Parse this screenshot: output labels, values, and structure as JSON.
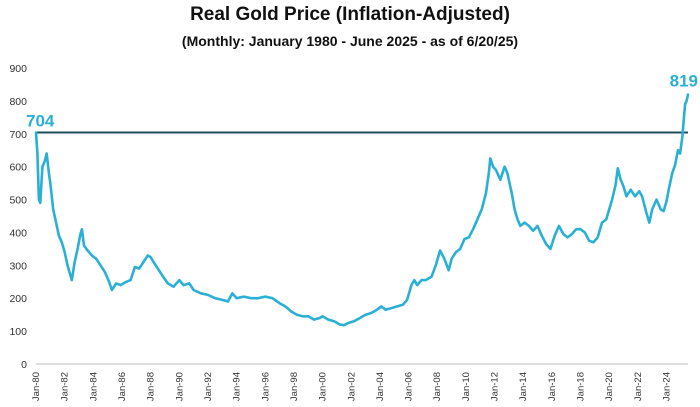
{
  "chart_data": {
    "type": "line",
    "title": "Real Gold Price (Inflation-Adjusted)",
    "subtitle": "(Monthly: January 1980 - June 2025 - as of 6/20/25)",
    "xlabel": "",
    "ylabel": "",
    "ylim": [
      0,
      900
    ],
    "yticks": [
      0,
      100,
      200,
      300,
      400,
      500,
      600,
      700,
      800,
      900
    ],
    "xlim": [
      1980.0,
      2025.5
    ],
    "xticks": [
      {
        "x": 1980,
        "label": "Jan-80"
      },
      {
        "x": 1982,
        "label": "Jan-82"
      },
      {
        "x": 1984,
        "label": "Jan-84"
      },
      {
        "x": 1986,
        "label": "Jan-86"
      },
      {
        "x": 1988,
        "label": "Jan-88"
      },
      {
        "x": 1990,
        "label": "Jan-90"
      },
      {
        "x": 1992,
        "label": "Jan-92"
      },
      {
        "x": 1994,
        "label": "Jan-94"
      },
      {
        "x": 1996,
        "label": "Jan-96"
      },
      {
        "x": 1998,
        "label": "Jan-98"
      },
      {
        "x": 2000,
        "label": "Jan-00"
      },
      {
        "x": 2002,
        "label": "Jan-02"
      },
      {
        "x": 2004,
        "label": "Jan-04"
      },
      {
        "x": 2006,
        "label": "Jan-06"
      },
      {
        "x": 2008,
        "label": "Jan-08"
      },
      {
        "x": 2010,
        "label": "Jan-10"
      },
      {
        "x": 2012,
        "label": "Jan-12"
      },
      {
        "x": 2014,
        "label": "Jan-14"
      },
      {
        "x": 2016,
        "label": "Jan-16"
      },
      {
        "x": 2018,
        "label": "Jan-18"
      },
      {
        "x": 2020,
        "label": "Jan-20"
      },
      {
        "x": 2022,
        "label": "Jan-22"
      },
      {
        "x": 2024,
        "label": "Jan-24"
      }
    ],
    "series": [
      {
        "color": "#2ab0d4",
        "points": [
          [
            1980.0,
            704
          ],
          [
            1980.1,
            640
          ],
          [
            1980.2,
            500
          ],
          [
            1980.3,
            490
          ],
          [
            1980.45,
            600
          ],
          [
            1980.6,
            615
          ],
          [
            1980.75,
            640
          ],
          [
            1980.9,
            580
          ],
          [
            1981.0,
            550
          ],
          [
            1981.2,
            470
          ],
          [
            1981.4,
            430
          ],
          [
            1981.6,
            390
          ],
          [
            1981.8,
            370
          ],
          [
            1982.0,
            340
          ],
          [
            1982.2,
            300
          ],
          [
            1982.4,
            270
          ],
          [
            1982.5,
            255
          ],
          [
            1982.7,
            310
          ],
          [
            1982.9,
            350
          ],
          [
            1983.1,
            395
          ],
          [
            1983.2,
            410
          ],
          [
            1983.35,
            360
          ],
          [
            1983.6,
            345
          ],
          [
            1983.9,
            330
          ],
          [
            1984.2,
            320
          ],
          [
            1984.5,
            300
          ],
          [
            1984.8,
            280
          ],
          [
            1985.1,
            250
          ],
          [
            1985.3,
            225
          ],
          [
            1985.6,
            245
          ],
          [
            1985.9,
            240
          ],
          [
            1986.3,
            250
          ],
          [
            1986.6,
            255
          ],
          [
            1986.9,
            295
          ],
          [
            1987.2,
            290
          ],
          [
            1987.5,
            310
          ],
          [
            1987.8,
            330
          ],
          [
            1988.0,
            325
          ],
          [
            1988.2,
            310
          ],
          [
            1988.5,
            290
          ],
          [
            1988.8,
            270
          ],
          [
            1989.2,
            245
          ],
          [
            1989.6,
            235
          ],
          [
            1990.0,
            255
          ],
          [
            1990.3,
            240
          ],
          [
            1990.7,
            245
          ],
          [
            1991.0,
            225
          ],
          [
            1991.5,
            215
          ],
          [
            1992.0,
            210
          ],
          [
            1992.5,
            200
          ],
          [
            1993.0,
            195
          ],
          [
            1993.4,
            190
          ],
          [
            1993.7,
            215
          ],
          [
            1994.0,
            200
          ],
          [
            1994.5,
            205
          ],
          [
            1995.0,
            200
          ],
          [
            1995.5,
            200
          ],
          [
            1996.0,
            205
          ],
          [
            1996.5,
            200
          ],
          [
            1997.0,
            185
          ],
          [
            1997.4,
            175
          ],
          [
            1997.8,
            160
          ],
          [
            1998.2,
            150
          ],
          [
            1998.6,
            145
          ],
          [
            1999.0,
            145
          ],
          [
            1999.4,
            135
          ],
          [
            1999.8,
            140
          ],
          [
            2000.0,
            145
          ],
          [
            2000.4,
            135
          ],
          [
            2000.8,
            130
          ],
          [
            2001.2,
            120
          ],
          [
            2001.5,
            118
          ],
          [
            2001.8,
            125
          ],
          [
            2002.2,
            130
          ],
          [
            2002.6,
            140
          ],
          [
            2003.0,
            150
          ],
          [
            2003.4,
            155
          ],
          [
            2003.8,
            165
          ],
          [
            2004.1,
            175
          ],
          [
            2004.4,
            165
          ],
          [
            2004.8,
            170
          ],
          [
            2005.2,
            175
          ],
          [
            2005.6,
            180
          ],
          [
            2005.9,
            195
          ],
          [
            2006.2,
            240
          ],
          [
            2006.4,
            255
          ],
          [
            2006.6,
            240
          ],
          [
            2006.9,
            255
          ],
          [
            2007.2,
            255
          ],
          [
            2007.6,
            265
          ],
          [
            2007.9,
            300
          ],
          [
            2008.2,
            345
          ],
          [
            2008.5,
            320
          ],
          [
            2008.8,
            285
          ],
          [
            2009.0,
            320
          ],
          [
            2009.3,
            340
          ],
          [
            2009.6,
            350
          ],
          [
            2009.9,
            380
          ],
          [
            2010.2,
            385
          ],
          [
            2010.5,
            410
          ],
          [
            2010.8,
            440
          ],
          [
            2011.1,
            470
          ],
          [
            2011.4,
            520
          ],
          [
            2011.6,
            580
          ],
          [
            2011.7,
            625
          ],
          [
            2011.9,
            600
          ],
          [
            2012.1,
            590
          ],
          [
            2012.4,
            560
          ],
          [
            2012.7,
            600
          ],
          [
            2012.9,
            580
          ],
          [
            2013.2,
            520
          ],
          [
            2013.4,
            470
          ],
          [
            2013.6,
            440
          ],
          [
            2013.8,
            420
          ],
          [
            2014.1,
            430
          ],
          [
            2014.4,
            420
          ],
          [
            2014.7,
            405
          ],
          [
            2015.0,
            420
          ],
          [
            2015.3,
            390
          ],
          [
            2015.6,
            365
          ],
          [
            2015.9,
            350
          ],
          [
            2016.2,
            390
          ],
          [
            2016.5,
            420
          ],
          [
            2016.8,
            395
          ],
          [
            2017.1,
            385
          ],
          [
            2017.4,
            395
          ],
          [
            2017.7,
            410
          ],
          [
            2018.0,
            410
          ],
          [
            2018.3,
            400
          ],
          [
            2018.6,
            375
          ],
          [
            2018.9,
            370
          ],
          [
            2019.2,
            385
          ],
          [
            2019.5,
            430
          ],
          [
            2019.8,
            440
          ],
          [
            2020.0,
            470
          ],
          [
            2020.2,
            500
          ],
          [
            2020.45,
            545
          ],
          [
            2020.6,
            595
          ],
          [
            2020.8,
            560
          ],
          [
            2021.0,
            540
          ],
          [
            2021.2,
            510
          ],
          [
            2021.5,
            530
          ],
          [
            2021.8,
            510
          ],
          [
            2022.1,
            525
          ],
          [
            2022.3,
            510
          ],
          [
            2022.6,
            460
          ],
          [
            2022.8,
            430
          ],
          [
            2023.0,
            470
          ],
          [
            2023.3,
            500
          ],
          [
            2023.6,
            470
          ],
          [
            2023.8,
            465
          ],
          [
            2024.0,
            495
          ],
          [
            2024.2,
            540
          ],
          [
            2024.4,
            580
          ],
          [
            2024.6,
            605
          ],
          [
            2024.8,
            650
          ],
          [
            2024.95,
            640
          ],
          [
            2025.1,
            690
          ],
          [
            2025.2,
            740
          ],
          [
            2025.3,
            790
          ],
          [
            2025.4,
            800
          ],
          [
            2025.5,
            819
          ]
        ]
      }
    ],
    "reference_line": {
      "value": 704,
      "color": "#1f4e5f"
    },
    "annotations": [
      {
        "text": "704",
        "x": 1980.0,
        "y": 704
      },
      {
        "text": "819",
        "x": 2025.5,
        "y": 819
      }
    ],
    "grid": false,
    "legend": "none"
  }
}
